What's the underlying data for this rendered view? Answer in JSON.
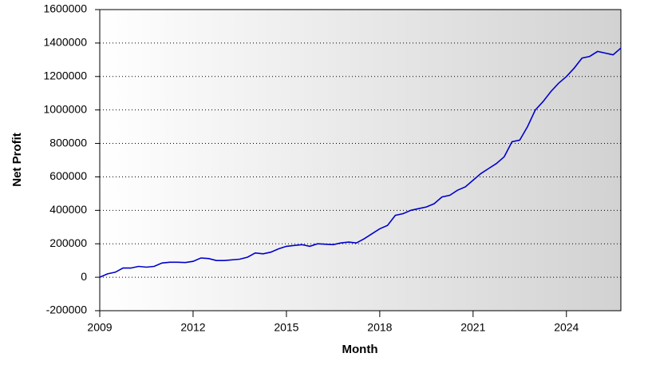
{
  "chart_data": {
    "type": "line",
    "x_label": "Month",
    "y_label": "Net Profit",
    "x": [
      2009.0,
      2009.25,
      2009.5,
      2009.75,
      2010.0,
      2010.25,
      2010.5,
      2010.75,
      2011.0,
      2011.25,
      2011.5,
      2011.75,
      2012.0,
      2012.25,
      2012.5,
      2012.75,
      2013.0,
      2013.5,
      2013.75,
      2014.0,
      2014.25,
      2014.5,
      2014.75,
      2015.0,
      2015.25,
      2015.5,
      2015.75,
      2016.0,
      2016.5,
      2016.75,
      2017.0,
      2017.25,
      2017.5,
      2017.75,
      2018.0,
      2018.25,
      2018.5,
      2018.75,
      2019.0,
      2019.25,
      2019.5,
      2019.75,
      2020.0,
      2020.25,
      2020.5,
      2020.75,
      2021.0,
      2021.25,
      2021.5,
      2021.75,
      2022.0,
      2022.25,
      2022.5,
      2022.75,
      2023.0,
      2023.25,
      2023.5,
      2023.75,
      2024.0,
      2024.25,
      2024.5,
      2024.75,
      2025.0,
      2025.25,
      2025.5,
      2025.75
    ],
    "series": [
      {
        "name": "Net Profit",
        "color": "#0000cc",
        "values": [
          0,
          20000,
          30000,
          55000,
          55000,
          65000,
          60000,
          65000,
          85000,
          90000,
          90000,
          88000,
          95000,
          115000,
          112000,
          100000,
          100000,
          108000,
          120000,
          145000,
          140000,
          150000,
          170000,
          185000,
          190000,
          195000,
          185000,
          200000,
          195000,
          205000,
          210000,
          205000,
          230000,
          260000,
          290000,
          310000,
          370000,
          380000,
          400000,
          410000,
          420000,
          440000,
          480000,
          490000,
          520000,
          540000,
          580000,
          620000,
          650000,
          680000,
          720000,
          810000,
          820000,
          900000,
          1000000,
          1050000,
          1110000,
          1160000,
          1200000,
          1250000,
          1310000,
          1320000,
          1350000,
          1340000,
          1330000,
          1370000
        ]
      }
    ],
    "xlim": [
      2009,
      2025.75
    ],
    "xticks": [
      2009,
      2012,
      2015,
      2018,
      2021,
      2024
    ],
    "ylim": [
      -200000,
      1600000
    ],
    "yticks": [
      -200000,
      0,
      200000,
      400000,
      600000,
      800000,
      1000000,
      1200000,
      1400000,
      1600000
    ],
    "grid": true
  }
}
